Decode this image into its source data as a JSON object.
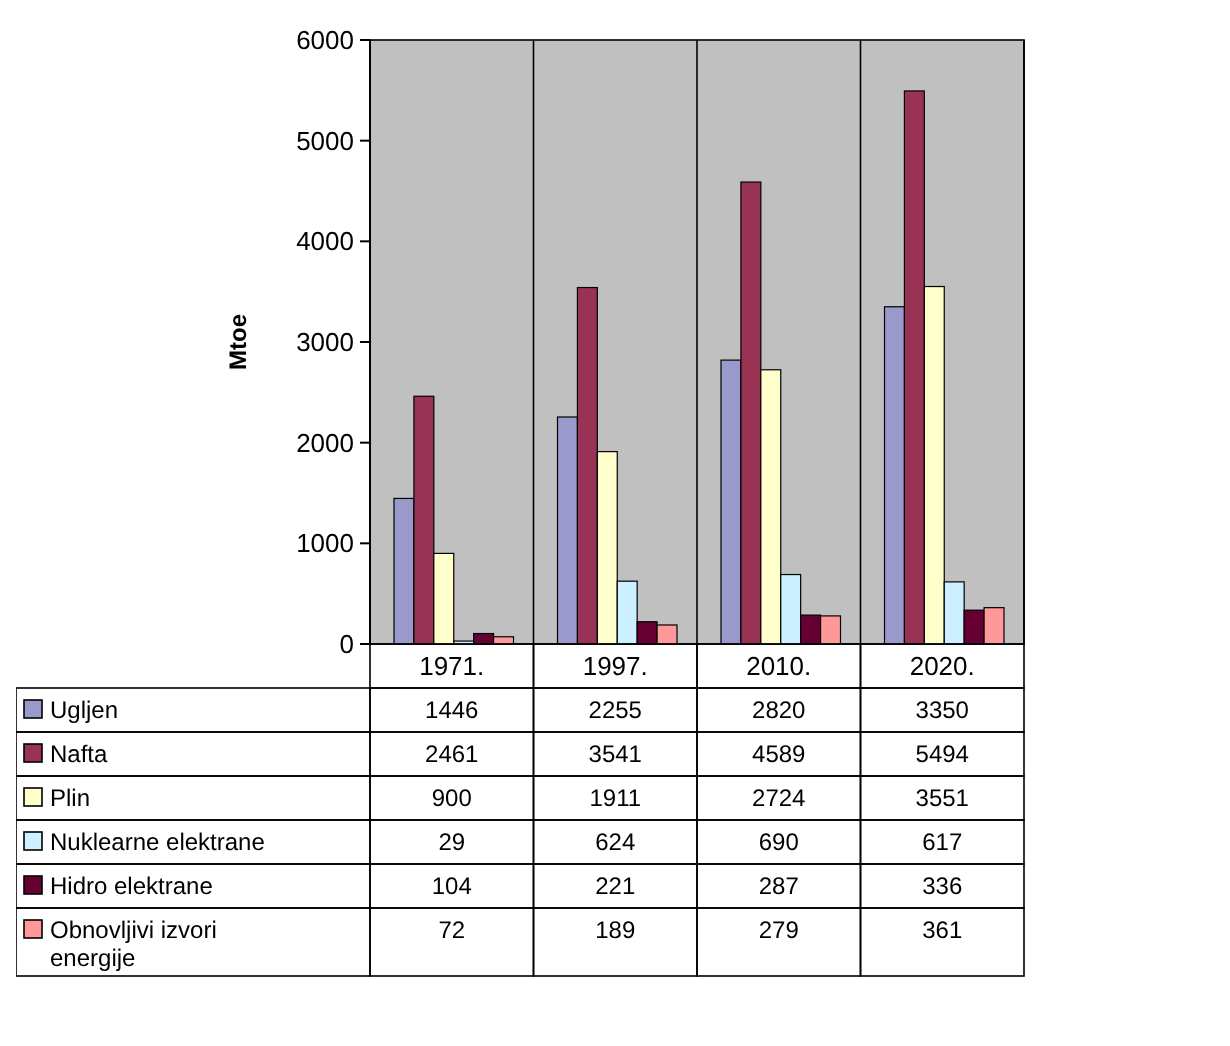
{
  "chart_data": {
    "type": "bar",
    "ylabel": "Mtoe",
    "categories": [
      "1971.",
      "1997.",
      "2010.",
      "2020."
    ],
    "series": [
      {
        "name": "Ugljen",
        "color": "#9999cc",
        "values": [
          1446,
          2255,
          2820,
          3350
        ]
      },
      {
        "name": "Nafta",
        "color": "#993355",
        "values": [
          2461,
          3541,
          4589,
          5494
        ]
      },
      {
        "name": "Plin",
        "color": "#ffffcc",
        "values": [
          900,
          1911,
          2724,
          3551
        ]
      },
      {
        "name": "Nuklearne elektrane",
        "color": "#ccf0ff",
        "values": [
          29,
          624,
          690,
          617
        ]
      },
      {
        "name": "Hidro elektrane",
        "color": "#660033",
        "values": [
          104,
          221,
          287,
          336
        ]
      },
      {
        "name": "Obnovljivi izvori energije",
        "color": "#ff9999",
        "values": [
          72,
          189,
          279,
          361
        ]
      }
    ],
    "ylim": [
      0,
      6000
    ],
    "yticks": [
      0,
      1000,
      2000,
      3000,
      4000,
      5000,
      6000
    ],
    "grid": "x",
    "legend": "bottom",
    "data_labels": true
  }
}
